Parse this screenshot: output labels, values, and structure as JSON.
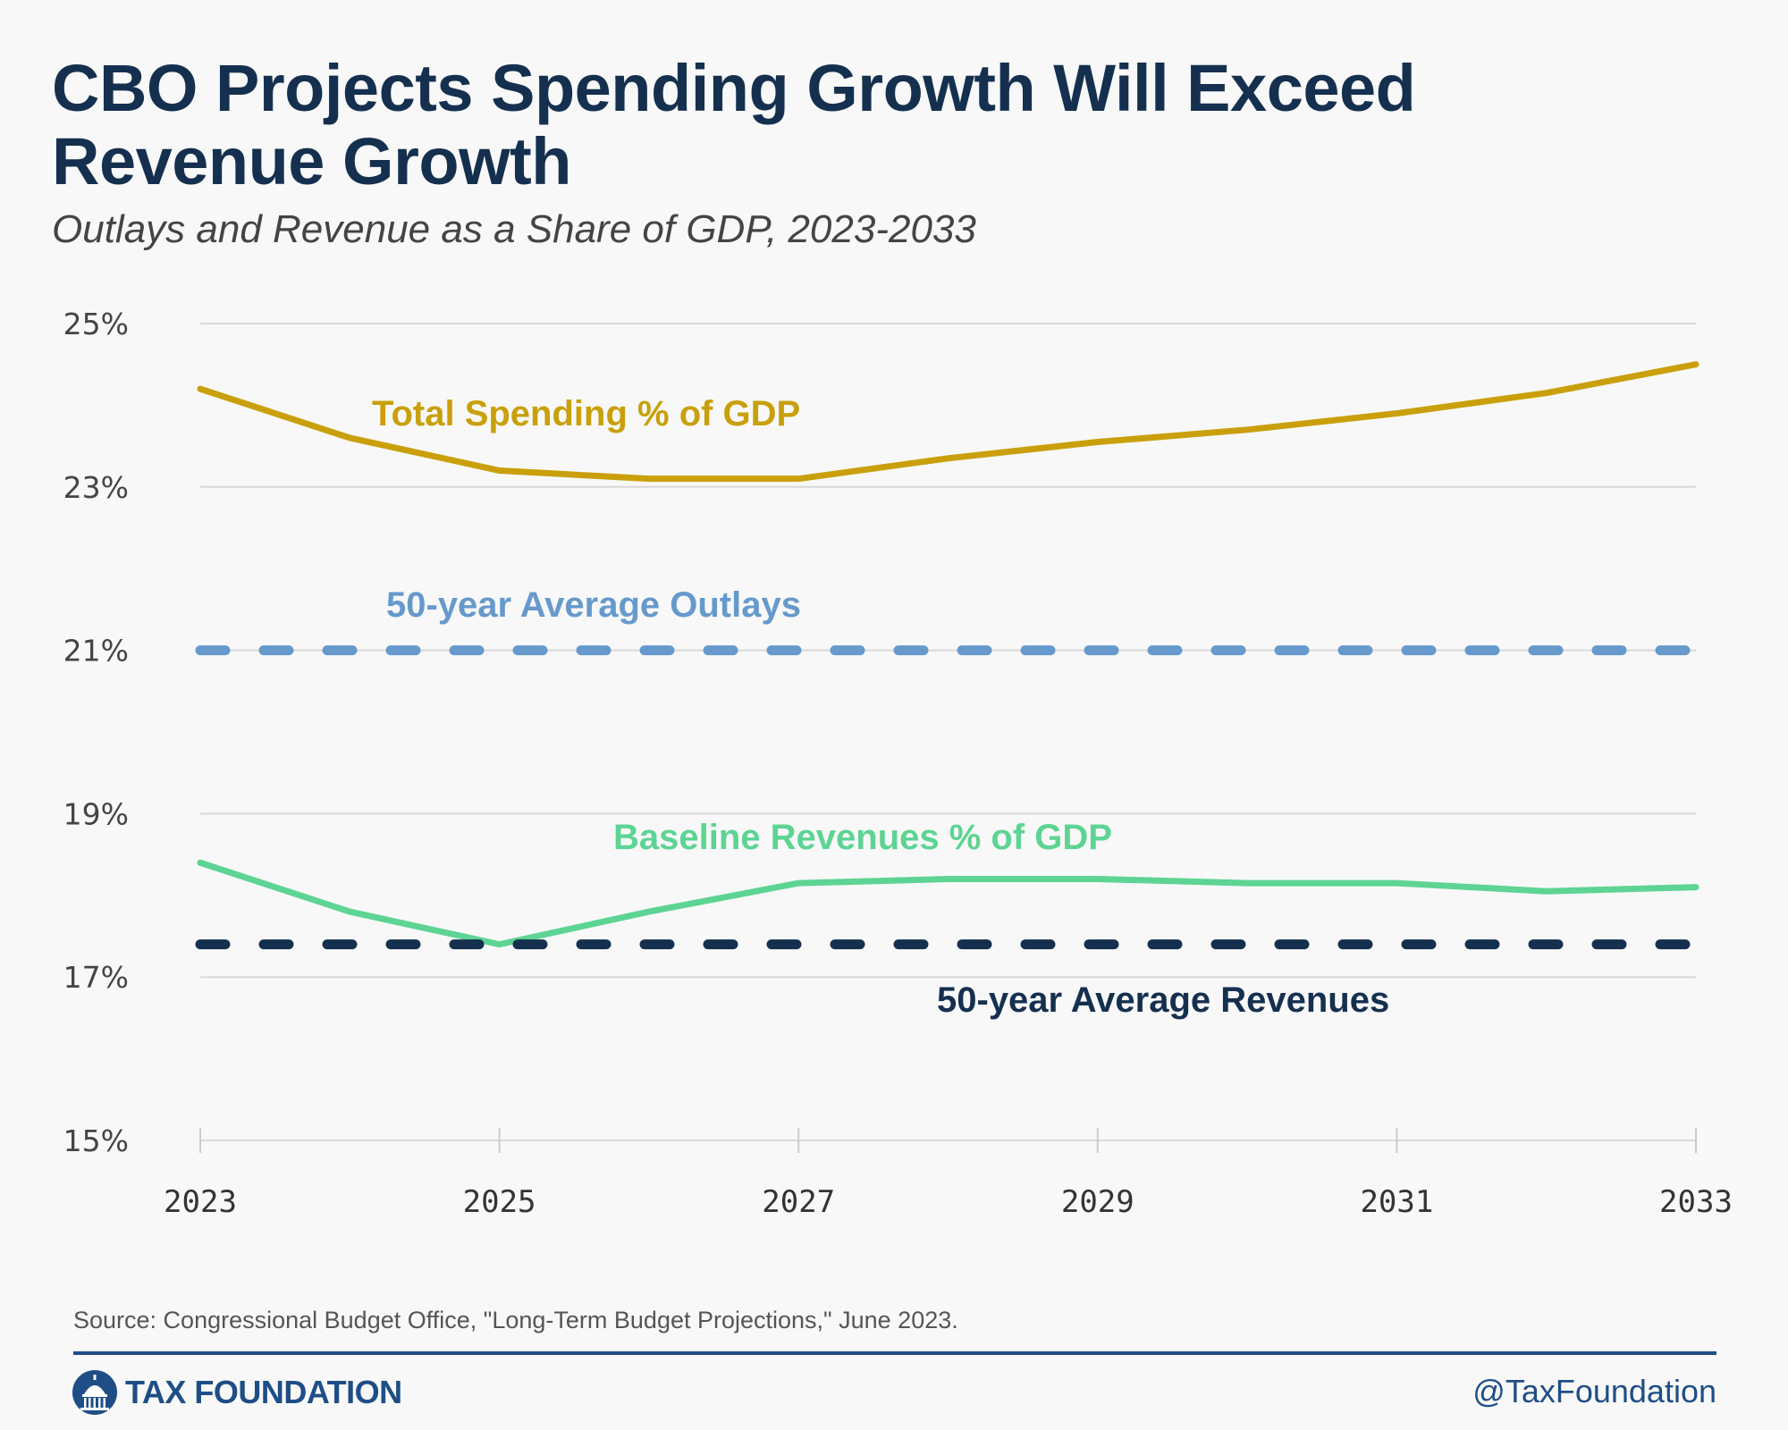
{
  "header": {
    "title": "CBO Projects Spending Growth Will Exceed Revenue Growth",
    "subtitle": "Outlays and Revenue as a Share of GDP, 2023-2033"
  },
  "chart_data": {
    "type": "line",
    "title": "CBO Projects Spending Growth Will Exceed Revenue Growth",
    "subtitle": "Outlays and Revenue as a Share of GDP, 2023-2033",
    "xlabel": "",
    "ylabel": "",
    "x": [
      2023,
      2024,
      2025,
      2026,
      2027,
      2028,
      2029,
      2030,
      2031,
      2032,
      2033
    ],
    "x_ticks": [
      2023,
      2025,
      2027,
      2029,
      2031,
      2033
    ],
    "x_tick_labels": [
      "2023",
      "2025",
      "2027",
      "2029",
      "2031",
      "2033"
    ],
    "ylim": [
      15,
      25
    ],
    "y_ticks": [
      15,
      17,
      19,
      21,
      23,
      25
    ],
    "y_tick_labels": [
      "15%",
      "17%",
      "19%",
      "21%",
      "23%",
      "25%"
    ],
    "grid": true,
    "series": [
      {
        "name": "Total Spending % of GDP",
        "color": "#c9a00b",
        "style": "solid",
        "values": [
          24.2,
          23.6,
          23.2,
          23.1,
          23.1,
          23.35,
          23.55,
          23.7,
          23.9,
          24.15,
          24.5
        ]
      },
      {
        "name": "50-year Average Outlays",
        "color": "#6699cc",
        "style": "dashed",
        "values": [
          21.0,
          21.0,
          21.0,
          21.0,
          21.0,
          21.0,
          21.0,
          21.0,
          21.0,
          21.0,
          21.0
        ]
      },
      {
        "name": "Baseline Revenues % of GDP",
        "color": "#5dd493",
        "style": "solid",
        "values": [
          18.4,
          17.8,
          17.4,
          17.8,
          18.15,
          18.2,
          18.2,
          18.15,
          18.15,
          18.05,
          18.1
        ]
      },
      {
        "name": "50-year Average Revenues",
        "color": "#15304f",
        "style": "dashed",
        "values": [
          17.4,
          17.4,
          17.4,
          17.4,
          17.4,
          17.4,
          17.4,
          17.4,
          17.4,
          17.4,
          17.4
        ]
      }
    ]
  },
  "footer": {
    "source": "Source: Congressional Budget Office, \"Long-Term Budget Projections,\" June 2023.",
    "logo_text": "TAX FOUNDATION",
    "handle": "@TaxFoundation",
    "brand_color": "#1f4e86"
  }
}
